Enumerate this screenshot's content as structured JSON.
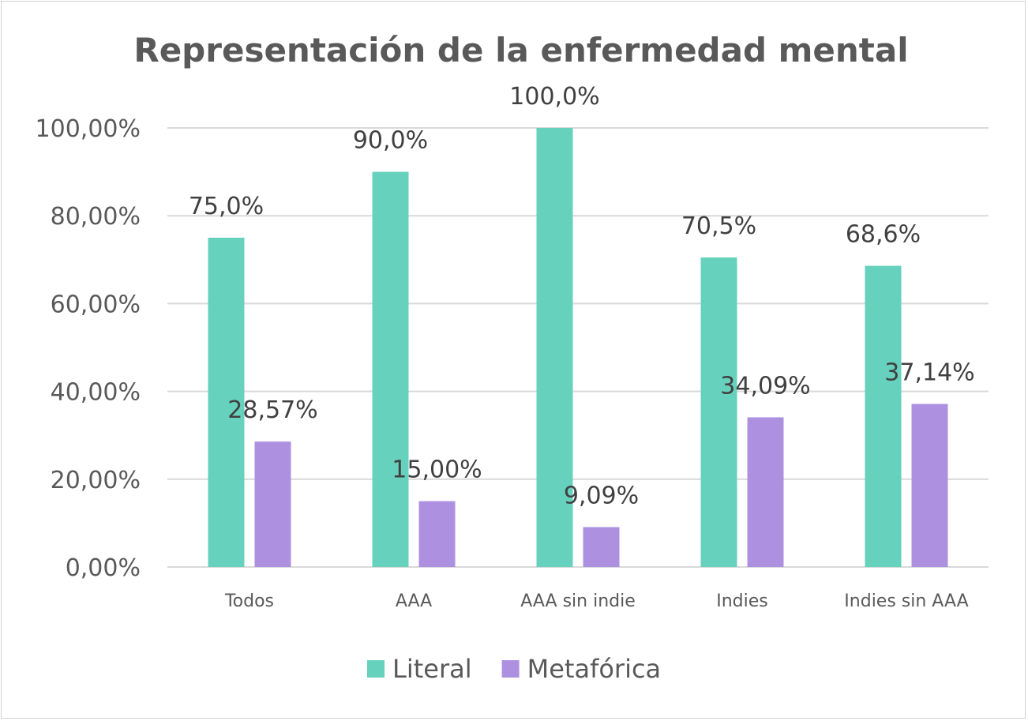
{
  "chart_data": {
    "type": "bar",
    "title": "Representación de la enfermedad mental",
    "categories": [
      "Todos",
      "AAA",
      "AAA sin indie",
      "Indies",
      "Indies sin AAA"
    ],
    "series": [
      {
        "name": "Literal",
        "color": "#66d1bd",
        "values": [
          75.0,
          90.0,
          100.0,
          70.5,
          68.6
        ],
        "labels": [
          "75,0%",
          "90,0%",
          "100,0%",
          "70,5%",
          "68,6%"
        ]
      },
      {
        "name": "Metafórica",
        "color": "#ad91e0",
        "values": [
          28.57,
          15.0,
          9.09,
          34.09,
          37.14
        ],
        "labels": [
          "28,57%",
          "15,00%",
          "9,09%",
          "34,09%",
          "37,14%"
        ]
      }
    ],
    "ylim": [
      0,
      100
    ],
    "yticks": [
      0,
      20,
      40,
      60,
      80,
      100
    ],
    "ytick_labels": [
      "0,00%",
      "20,00%",
      "40,00%",
      "60,00%",
      "80,00%",
      "100,00%"
    ],
    "grid": true,
    "legend_position": "bottom"
  }
}
